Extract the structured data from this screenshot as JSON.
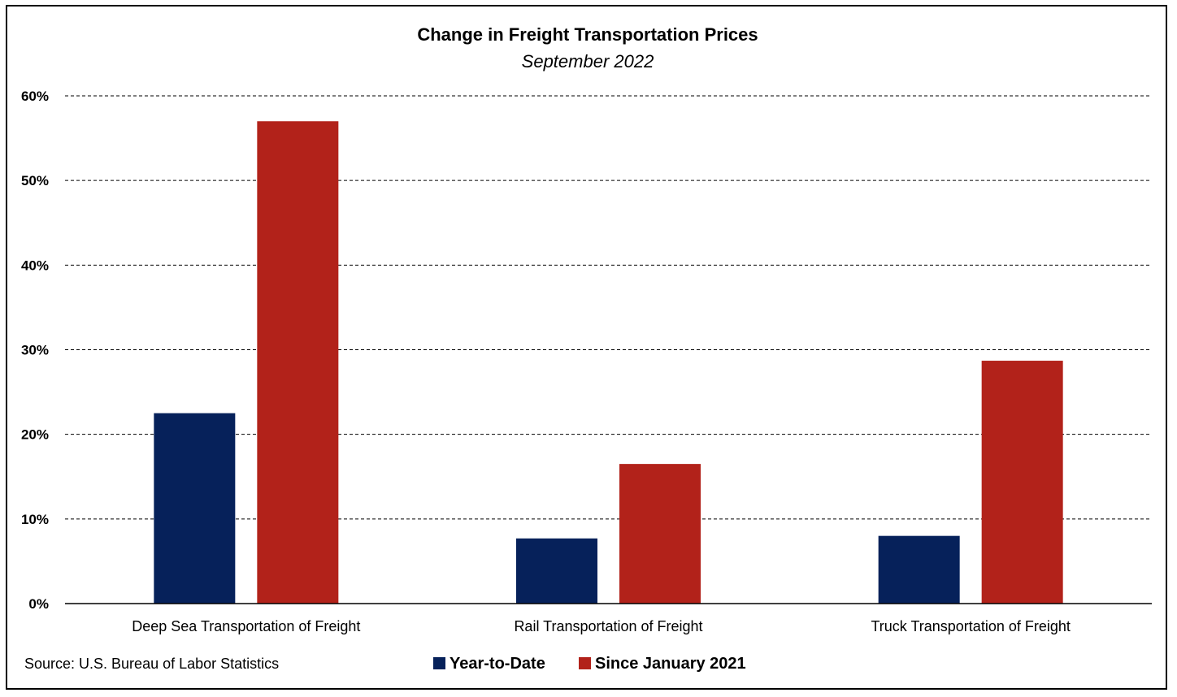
{
  "chart_data": {
    "type": "bar",
    "title": "Change in Freight Transportation Prices",
    "subtitle": "September 2022",
    "categories": [
      "Deep Sea Transportation of Freight",
      "Rail Transportation of Freight",
      "Truck Transportation of Freight"
    ],
    "series": [
      {
        "name": "Year-to-Date",
        "color": "#06215a",
        "values": [
          22.5,
          7.7,
          8.0
        ]
      },
      {
        "name": "Since January 2021",
        "color": "#b2221a",
        "values": [
          57.0,
          16.5,
          28.7
        ]
      }
    ],
    "y_ticks": [
      "0%",
      "10%",
      "20%",
      "30%",
      "40%",
      "50%",
      "60%"
    ],
    "ylim": [
      0,
      60
    ],
    "grid": true,
    "legend_position": "bottom-center",
    "source": "Source: U.S. Bureau of Labor Statistics"
  }
}
